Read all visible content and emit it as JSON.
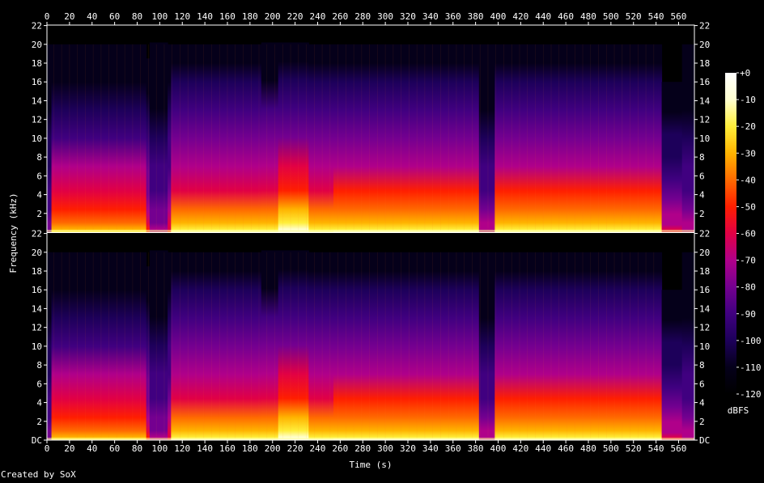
{
  "chart_data": {
    "type": "heatmap",
    "title": "",
    "xlabel": "Time (s)",
    "ylabel": "Frequency (kHz)",
    "x_ticks": [
      0,
      20,
      40,
      60,
      80,
      100,
      120,
      140,
      160,
      180,
      200,
      220,
      240,
      260,
      280,
      300,
      320,
      340,
      360,
      380,
      400,
      420,
      440,
      460,
      480,
      500,
      520,
      540,
      560
    ],
    "xlim": [
      0,
      574
    ],
    "ylim_khz": [
      0,
      22.05
    ],
    "channels": [
      {
        "name": "",
        "y_ticks": [
          "2",
          "4",
          "6",
          "8",
          "10",
          "12",
          "14",
          "16",
          "18",
          "20",
          "22"
        ]
      },
      {
        "name": "",
        "y_ticks": [
          "DC",
          "2",
          "4",
          "6",
          "8",
          "10",
          "12",
          "14",
          "16",
          "18",
          "20",
          "22"
        ]
      }
    ],
    "colorbar": {
      "label": "dBFS",
      "ticks": [
        "+0",
        "-10",
        "-20",
        "-30",
        "-40",
        "-50",
        "-60",
        "-70",
        "-80",
        "-90",
        "-100",
        "-110",
        "-120"
      ],
      "range": [
        -120,
        0
      ]
    },
    "segments": [
      {
        "t": [
          0,
          4
        ],
        "level": 0.25,
        "cutoff_khz": 20
      },
      {
        "t": [
          4,
          88
        ],
        "level": 0.8,
        "cutoff_khz": 20
      },
      {
        "t": [
          88,
          91
        ],
        "level": 0.55,
        "cutoff_khz": 18.5
      },
      {
        "t": [
          91,
          107
        ],
        "level": 0.32,
        "cutoff_khz": 20.2
      },
      {
        "t": [
          107,
          110
        ],
        "level": 0.5,
        "cutoff_khz": 20
      },
      {
        "t": [
          110,
          190
        ],
        "level": 0.9,
        "cutoff_khz": 20
      },
      {
        "t": [
          190,
          205
        ],
        "level": 0.88,
        "cutoff_khz": 20.2
      },
      {
        "t": [
          205,
          232
        ],
        "level": 1.0,
        "cutoff_khz": 20.2
      },
      {
        "t": [
          232,
          254
        ],
        "level": 0.9,
        "cutoff_khz": 20
      },
      {
        "t": [
          254,
          383
        ],
        "level": 0.93,
        "cutoff_khz": 20
      },
      {
        "t": [
          383,
          397
        ],
        "level": 0.35,
        "cutoff_khz": 20
      },
      {
        "t": [
          397,
          545
        ],
        "level": 0.92,
        "cutoff_khz": 20
      },
      {
        "t": [
          545,
          563
        ],
        "level": 0.45,
        "cutoff_khz": 16
      },
      {
        "t": [
          563,
          574
        ],
        "level": 0.35,
        "cutoff_khz": 20
      }
    ],
    "gradient": [
      "#000000",
      "#05001a",
      "#1d005a",
      "#400080",
      "#740090",
      "#b0008a",
      "#e10045",
      "#ff1e00",
      "#ff6a00",
      "#ffb400",
      "#ffee3a",
      "#ffffd0",
      "#ffffff"
    ]
  },
  "footer": {
    "credit": "Created by SoX"
  }
}
